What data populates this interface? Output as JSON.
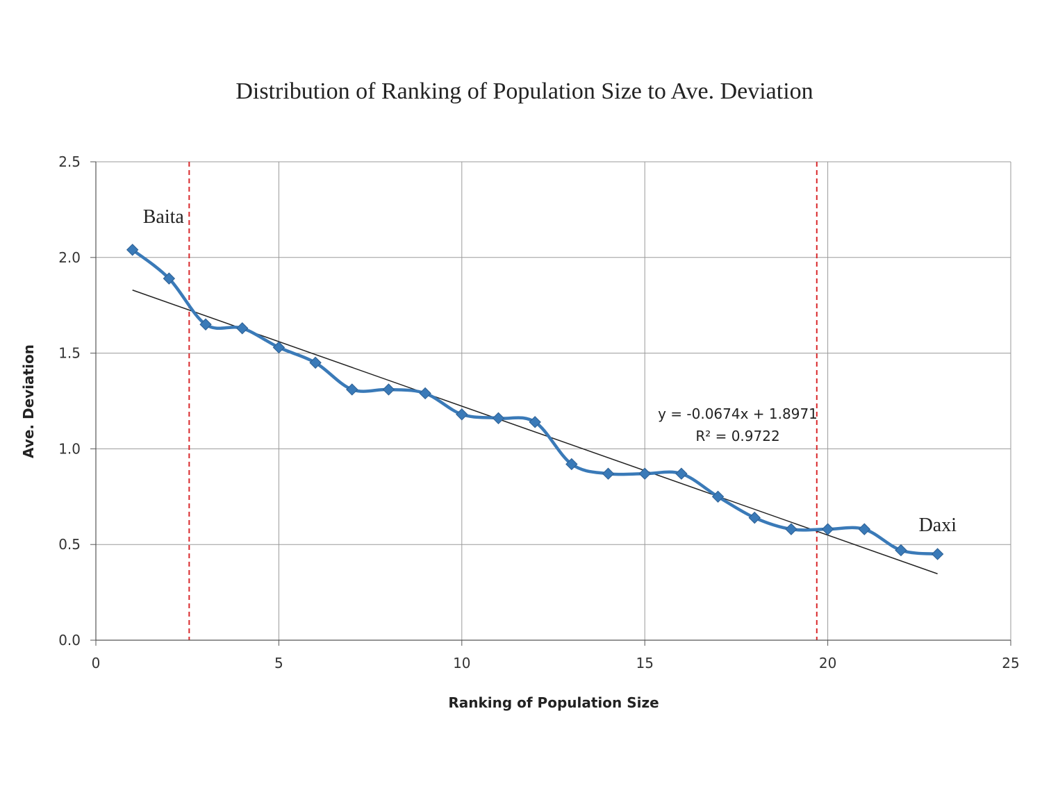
{
  "chart_data": {
    "type": "line",
    "title": "Distribution of Ranking of Population Size to Ave. Deviation",
    "xlabel": "Ranking of Population Size",
    "ylabel": "Ave. Deviation",
    "xlim": [
      0,
      25
    ],
    "ylim": [
      0,
      2.5
    ],
    "x_ticks": [
      "0",
      "5",
      "10",
      "15",
      "20",
      "25"
    ],
    "y_ticks": [
      "0.0",
      "0.5",
      "1.0",
      "1.5",
      "2.0",
      "2.5"
    ],
    "grid": true,
    "legend": "none",
    "series": [
      {
        "color": "#3a7ab8",
        "marker": "diamond",
        "x": [
          1,
          2,
          3,
          4,
          5,
          6,
          7,
          8,
          9,
          10,
          11,
          12,
          13,
          14,
          15,
          16,
          17,
          18,
          19,
          20,
          21,
          22,
          23
        ],
        "y": [
          2.04,
          1.89,
          1.65,
          1.63,
          1.53,
          1.45,
          1.31,
          1.31,
          1.29,
          1.18,
          1.16,
          1.14,
          0.92,
          0.87,
          0.87,
          0.87,
          0.75,
          0.64,
          0.58,
          0.58,
          0.58,
          0.47,
          0.45
        ]
      }
    ],
    "trendline": {
      "slope": -0.0674,
      "intercept": 1.8971,
      "x_range": [
        1,
        23
      ],
      "color": "#222222",
      "equation_label": "y = -0.0674x + 1.8971",
      "r2_label": "R² = 0.9722"
    },
    "reference_lines": [
      {
        "x": 2.55,
        "color": "#d9292b",
        "style": "dashed"
      },
      {
        "x": 19.7,
        "color": "#d9292b",
        "style": "dashed"
      }
    ],
    "annotations": [
      {
        "text": "Baita",
        "x": 1.4,
        "y": 2.18
      },
      {
        "text": "Daxi",
        "x": 22.6,
        "y": 0.57
      }
    ]
  }
}
